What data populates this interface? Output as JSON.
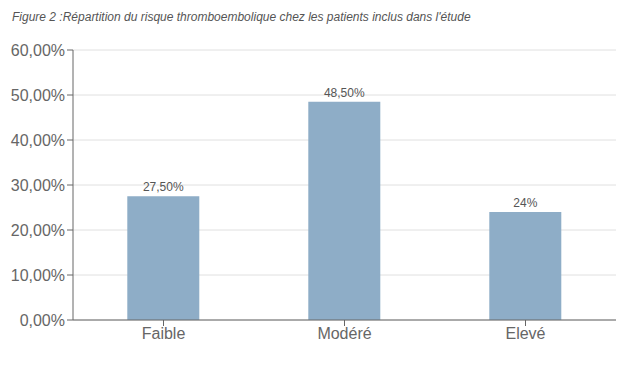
{
  "chart_data": {
    "type": "bar",
    "title": "Figure 2 :Répartition du risque thromboembolique chez les patients inclus dans l'étude",
    "categories": [
      "Faible",
      "Modéré",
      "Elevé"
    ],
    "values": [
      27.5,
      48.5,
      24.0
    ],
    "value_labels": [
      "27,50%",
      "48,50%",
      "24%"
    ],
    "color": "#8eadc7",
    "ylim": [
      0,
      60
    ],
    "yticks": [
      {
        "value": 0,
        "label": "0,00%"
      },
      {
        "value": 10,
        "label": "10,00%"
      },
      {
        "value": 20,
        "label": "20,00%"
      },
      {
        "value": 30,
        "label": "30,00%"
      },
      {
        "value": 40,
        "label": "40,00%"
      },
      {
        "value": 50,
        "label": "50,00%"
      },
      {
        "value": 60,
        "label": "60,00%"
      }
    ],
    "grid": true,
    "data_labels": true
  }
}
